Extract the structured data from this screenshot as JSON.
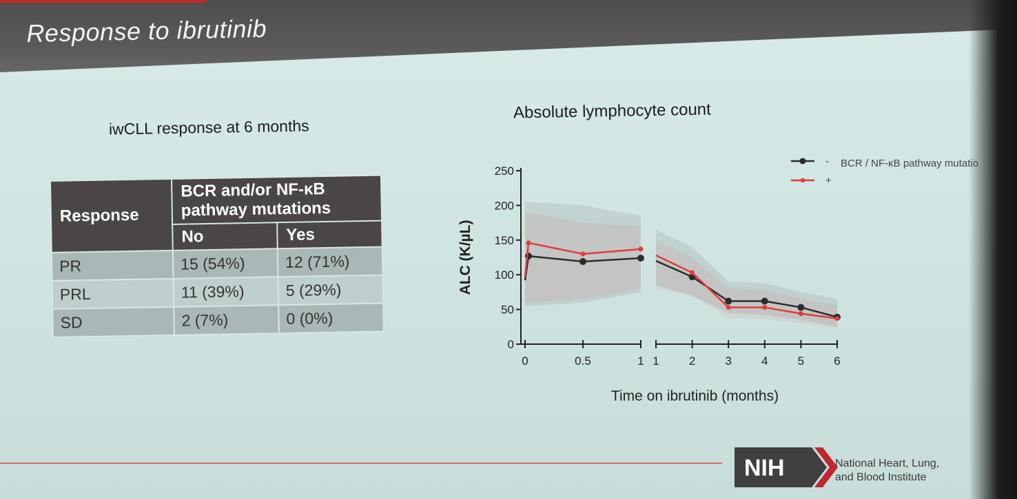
{
  "slide": {
    "title": "Response to ibrutinib",
    "table_caption": "iwCLL response at 6 months",
    "chart_title": "Absolute lymphocyte count"
  },
  "table": {
    "header_response": "Response",
    "header_group": "BCR and/or NF-κB pathway mutations",
    "header_no": "No",
    "header_yes": "Yes",
    "rows": [
      {
        "label": "PR",
        "no": "15 (54%)",
        "yes": "12 (71%)"
      },
      {
        "label": "PRL",
        "no": "11 (39%)",
        "yes": "5 (29%)"
      },
      {
        "label": "SD",
        "no": "2 (7%)",
        "yes": "0 (0%)"
      }
    ]
  },
  "footer": {
    "logo_text": "NIH",
    "institute_line1": "National Heart, Lung,",
    "institute_line2": "and Blood Institute"
  },
  "chart_data": {
    "type": "line",
    "xlabel": "Time on ibrutinib (months)",
    "ylabel": "ALC (K/µL)",
    "ylim": [
      0,
      250
    ],
    "yticks": [
      0,
      50,
      100,
      150,
      200,
      250
    ],
    "segments": [
      {
        "xlim": [
          0,
          1
        ],
        "xticks": [
          0,
          0.5,
          1
        ],
        "xtick_labels": [
          "0",
          "0.5",
          "1"
        ]
      },
      {
        "xlim": [
          1,
          6
        ],
        "xticks": [
          1,
          2,
          3,
          4,
          5,
          6
        ],
        "xtick_labels": [
          "1",
          "2",
          "3",
          "4",
          "5",
          "6"
        ]
      }
    ],
    "legend": {
      "title": "BCR / NF-κB pathway mutations",
      "entries": [
        "-",
        "+"
      ],
      "placement": "top-right"
    },
    "series": [
      {
        "name": "-",
        "color": "#2b2b2b",
        "points": [
          [
            0,
            92
          ],
          [
            0.03,
            127
          ],
          [
            0.5,
            119
          ],
          [
            1,
            124
          ],
          [
            1,
            120
          ],
          [
            2,
            97
          ],
          [
            3,
            62
          ],
          [
            4,
            62
          ],
          [
            5,
            53
          ],
          [
            6,
            39
          ]
        ],
        "band_upper": [
          205,
          205,
          200,
          185,
          165,
          140,
          90,
          88,
          75,
          65
        ],
        "band_lower": [
          55,
          55,
          60,
          75,
          85,
          70,
          45,
          42,
          35,
          25
        ]
      },
      {
        "name": "+",
        "color": "#e33a3e",
        "points": [
          [
            0,
            97
          ],
          [
            0.03,
            146
          ],
          [
            0.5,
            130
          ],
          [
            1,
            137
          ],
          [
            1,
            128
          ],
          [
            2,
            103
          ],
          [
            3,
            53
          ],
          [
            4,
            53
          ],
          [
            5,
            44
          ],
          [
            6,
            37
          ]
        ],
        "band_upper": [
          190,
          190,
          175,
          170,
          150,
          125,
          80,
          78,
          65,
          55
        ],
        "band_lower": [
          60,
          60,
          65,
          80,
          80,
          70,
          38,
          36,
          30,
          22
        ]
      }
    ]
  }
}
